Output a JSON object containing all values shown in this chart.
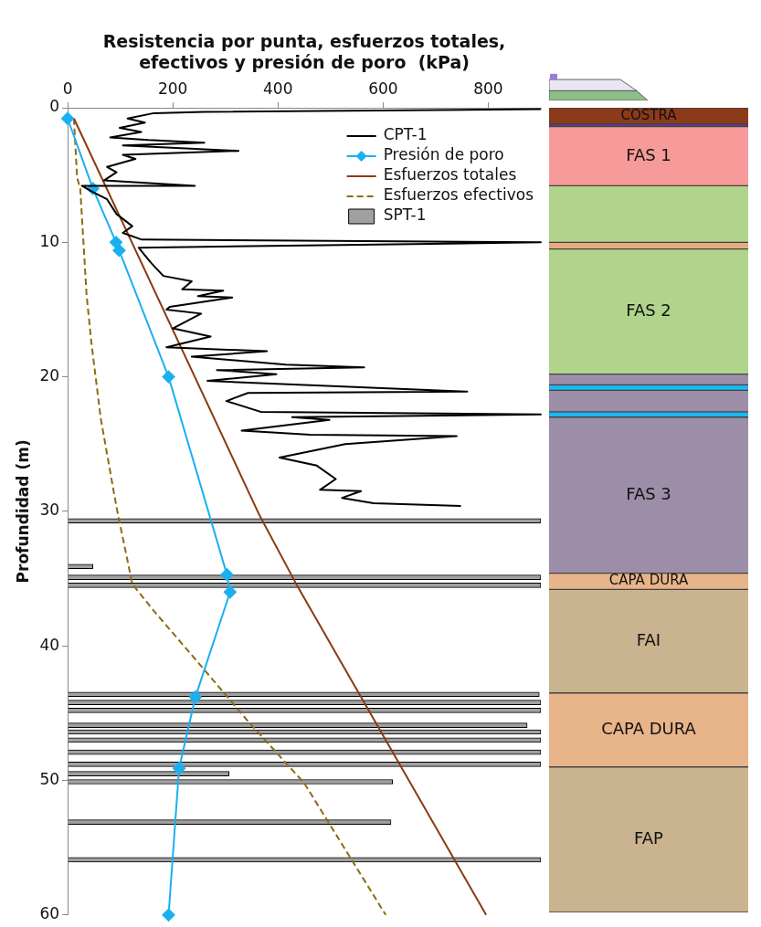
{
  "chart_data": [
    {
      "type": "line",
      "orientation": "horizontal",
      "xlabel": "Resistencia por punta, esfuerzos totales, efectivos y presión de poro  (kPa)",
      "ylabel": "Profundidad (m)",
      "xlim": [
        0,
        900
      ],
      "xticks": [
        0,
        200,
        400,
        600,
        800
      ],
      "ylim": [
        60,
        0
      ],
      "yticks": [
        0,
        10,
        20,
        30,
        40,
        50,
        60
      ],
      "legend": "top right",
      "series": [
        {
          "name": "CPT-1",
          "type": "line",
          "color": "#000000",
          "marker": "none",
          "line_style": "solid",
          "x": [
            0.1,
            0.3,
            0.4,
            0.8,
            1.1,
            1.5,
            1.8,
            2.2,
            2.4,
            2.6,
            2.8,
            3.2,
            3.5,
            3.8,
            4.4,
            4.8,
            5.4,
            5.8,
            5.8,
            6.2,
            6.8,
            7.9,
            8.8,
            9.3,
            9.8,
            10.0,
            10.2,
            10.4,
            11.5,
            12.5,
            12.9,
            13.5,
            13.6,
            14.0,
            14.1,
            14.8,
            15.0,
            15.3,
            16.4,
            17.0,
            17.8,
            18.1,
            18.5,
            19.1,
            19.3,
            19.5,
            19.8,
            20.3,
            21.1,
            21.2,
            21.8,
            22.6,
            22.8,
            23.0,
            23.2,
            24.0,
            24.3,
            24.4,
            25.0,
            26.0,
            26.6,
            27.6,
            28.4,
            28.5,
            29.0,
            29.4,
            29.6
          ],
          "values": [
            900,
            260,
            164,
            114,
            147,
            99,
            140,
            81,
            153,
            260,
            105,
            325,
            105,
            129,
            75,
            93,
            69,
            242,
            27,
            45,
            75,
            93,
            123,
            105,
            141,
            900,
            522,
            135,
            158,
            182,
            236,
            218,
            296,
            248,
            313,
            194,
            188,
            254,
            200,
            272,
            188,
            379,
            236,
            415,
            564,
            284,
            397,
            266,
            760,
            343,
            302,
            367,
            900,
            427,
            498,
            331,
            462,
            740,
            528,
            403,
            474,
            510,
            480,
            558,
            522,
            582,
            748
          ]
        },
        {
          "name": "Presión de poro",
          "type": "line",
          "color": "#1ab0f0",
          "marker": "diamond",
          "line_style": "solid",
          "x": [
            0.8,
            6.0,
            10.0,
            10.6,
            20.0,
            34.7,
            36.0,
            43.8,
            49.1,
            60.0
          ],
          "values": [
            0,
            48,
            92,
            98,
            192,
            303,
            309,
            243,
            212,
            192
          ]
        },
        {
          "name": "Esfuerzos totales",
          "type": "line",
          "color": "#8b3a10",
          "marker": "none",
          "line_style": "solid",
          "x": [
            0.8,
            30.3,
            35.7,
            60.0
          ],
          "values": [
            12,
            365,
            439,
            796
          ]
        },
        {
          "name": "Esfuerzos efectivos",
          "type": "line",
          "color": "#8a6d10",
          "marker": "none",
          "line_style": "dashed",
          "x": [
            0.8,
            5.2,
            6.0,
            13.9,
            17.4,
            23.1,
            29.7,
            35.4,
            37.4,
            41.5,
            45.6,
            50.2,
            60.0
          ],
          "values": [
            12,
            18,
            24,
            36,
            45,
            63,
            93,
            123,
            164,
            254,
            343,
            450,
            605
          ]
        },
        {
          "name": "SPT-1",
          "type": "bar",
          "color": "#a0a0a0",
          "x": [
            30.7,
            34.1,
            34.9,
            35.5,
            43.6,
            44.2,
            44.8,
            45.9,
            46.4,
            47.0,
            47.9,
            48.8,
            49.5,
            50.1,
            53.1,
            55.9
          ],
          "values": [
            900,
            48,
            900,
            900,
            897,
            900,
            900,
            874,
            900,
            900,
            900,
            900,
            307,
            618,
            615,
            900
          ]
        }
      ]
    },
    {
      "type": "bar",
      "stacked": true,
      "categories": [
        null
      ],
      "ylim": [
        60,
        0
      ],
      "series": [
        {
          "name": "COSTRA",
          "color": "#8b3a1a",
          "values": [
            1.2
          ]
        },
        {
          "color": "#5a3a8a",
          "values": [
            0.2
          ]
        },
        {
          "name": "FAS 1",
          "color": "#f79a9a",
          "values": [
            4.4
          ]
        },
        {
          "color": "#b0d48c",
          "values": [
            4.2
          ]
        },
        {
          "color": "#e5ad7d",
          "values": [
            0.5
          ]
        },
        {
          "name": "FAS 2",
          "color": "#b0d48c",
          "values": [
            9.3
          ]
        },
        {
          "color": "#9c8ea8",
          "values": [
            0.8
          ]
        },
        {
          "color": "#1ab8f0",
          "values": [
            0.4
          ]
        },
        {
          "color": "#9c8ea8",
          "values": [
            1.6
          ]
        },
        {
          "color": "#1ab8f0",
          "values": [
            0.4
          ]
        },
        {
          "name": "FAS 3",
          "color": "#9c8ea8",
          "values": [
            11.6
          ]
        },
        {
          "name": "CAPA DURA",
          "color": "#e8b489",
          "values": [
            1.2
          ]
        },
        {
          "name": "FAI",
          "color": "#c9b48f",
          "values": [
            7.7
          ]
        },
        {
          "name": "CAPA DURA",
          "color": "#e8b489",
          "values": [
            5.5
          ]
        },
        {
          "name": "FAP",
          "color": "#c9b48f",
          "values": [
            10.8
          ]
        }
      ]
    }
  ]
}
